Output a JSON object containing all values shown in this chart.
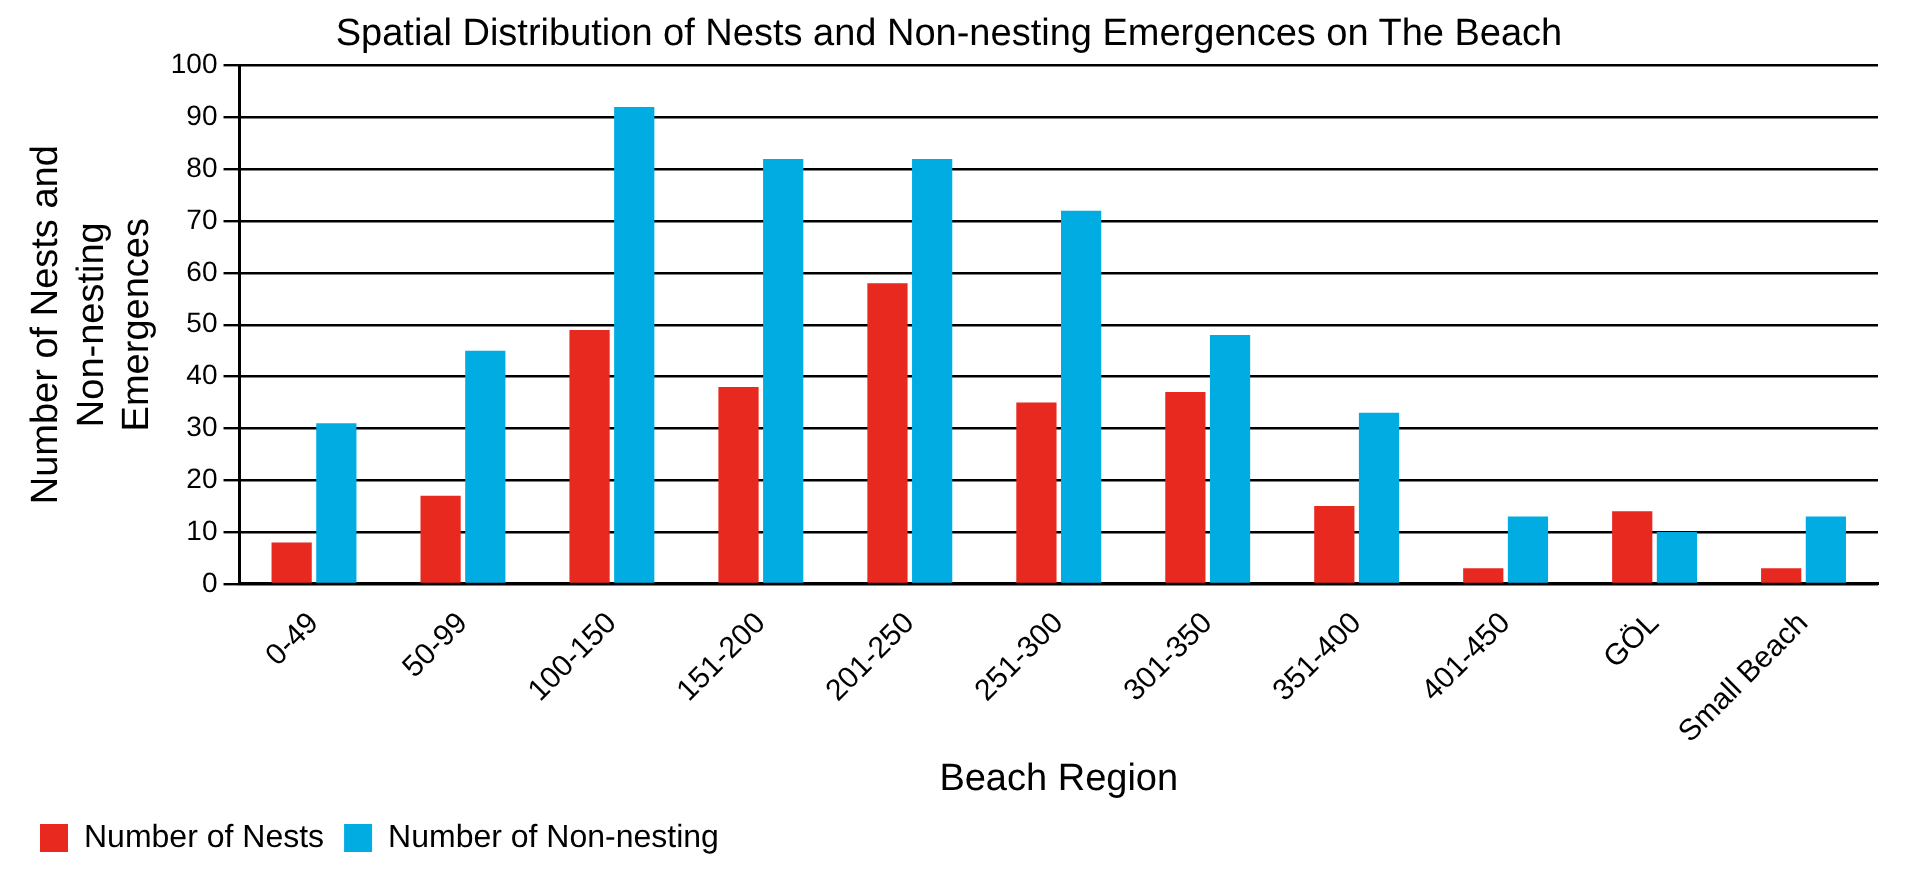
{
  "chart_data": {
    "type": "bar",
    "title": "Spatial Distribution of Nests and Non-nesting Emergences on The Beach",
    "xlabel": "Beach Region",
    "ylabel": "Number of Nests and\nNon-nesting\nEmergences",
    "categories": [
      "0-49",
      "50-99",
      "100-150",
      "151-200",
      "201-250",
      "251-300",
      "301-350",
      "351-400",
      "401-450",
      "GÖL",
      "Small Beach"
    ],
    "series": [
      {
        "name": "Number of Nests",
        "color": "#e8291f",
        "values": [
          8,
          17,
          49,
          38,
          58,
          35,
          37,
          15,
          3,
          14,
          3
        ]
      },
      {
        "name": "Number of Non-nesting",
        "color": "#00ace2",
        "values": [
          31,
          45,
          92,
          82,
          82,
          72,
          48,
          33,
          13,
          10,
          13
        ]
      }
    ],
    "ylim": [
      0,
      100
    ],
    "yticks": [
      0,
      10,
      20,
      30,
      40,
      50,
      60,
      70,
      80,
      90,
      100
    ],
    "grid": "y",
    "legend": "bottom left"
  }
}
